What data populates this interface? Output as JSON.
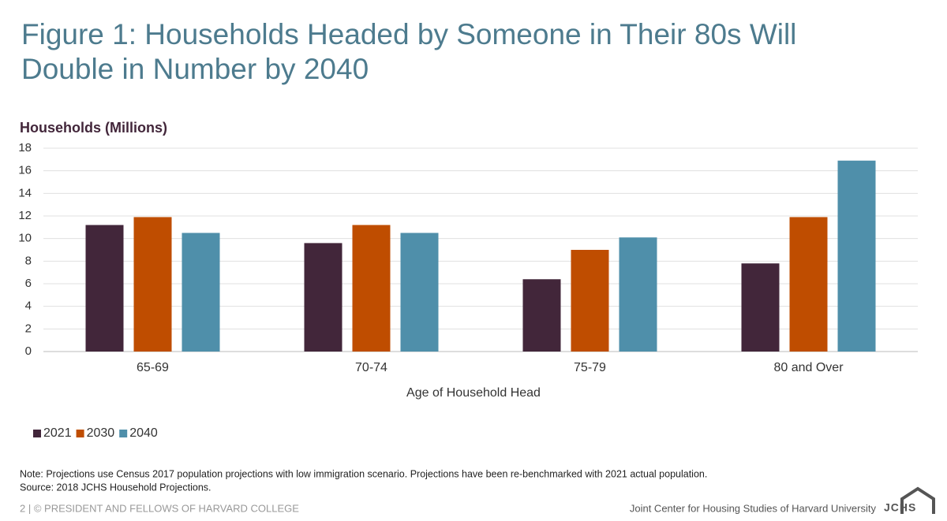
{
  "chart_data": {
    "type": "bar",
    "title": "Figure 1: Households Headed by Someone in Their 80s Will Double in Number by 2040",
    "y_label": "Households (Millions)",
    "x_label": "Age of Household Head",
    "categories": [
      "65-69",
      "70-74",
      "75-79",
      "80 and Over"
    ],
    "series": [
      {
        "name": "2021",
        "color": "#42263a",
        "values": [
          11.2,
          9.6,
          6.4,
          7.8
        ]
      },
      {
        "name": "2030",
        "color": "#bf4d00",
        "values": [
          11.9,
          11.2,
          9.0,
          11.9
        ]
      },
      {
        "name": "2040",
        "color": "#4f8faa",
        "values": [
          10.5,
          10.5,
          10.1,
          16.9
        ]
      }
    ],
    "ylim": [
      0,
      18
    ],
    "yticks": [
      0,
      2,
      4,
      6,
      8,
      10,
      12,
      14,
      16,
      18
    ],
    "grid": true,
    "legend": "bottom-left",
    "notes": [
      "Note: Projections use Census 2017 population projections with low immigration scenario. Projections have been re-benchmarked with 2021 actual population.",
      "Source: 2018 JCHS Household Projections."
    ]
  },
  "footer": {
    "left": "2 | © PRESIDENT AND FELLOWS OF HARVARD COLLEGE",
    "right": "Joint Center for Housing Studies of Harvard University",
    "logo": "JCHS"
  }
}
